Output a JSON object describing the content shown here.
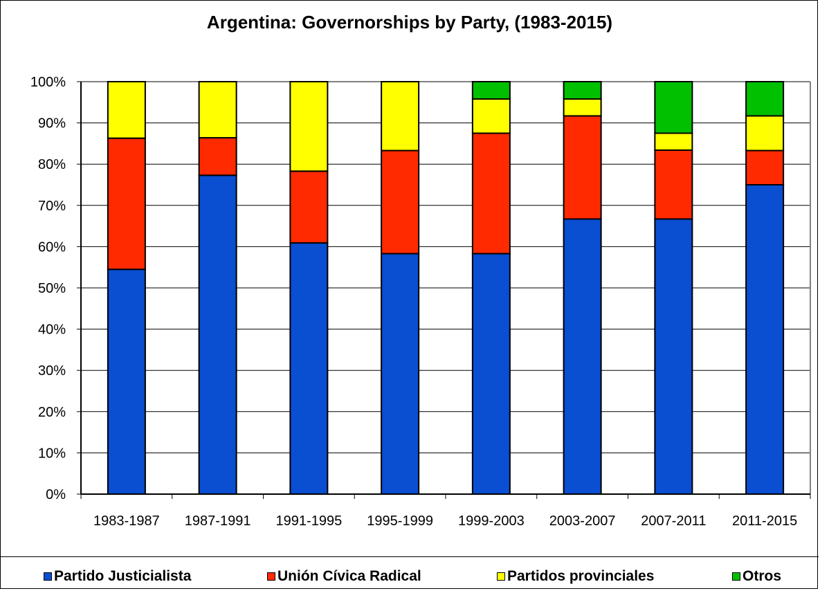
{
  "chart_data": {
    "type": "bar",
    "stacked": true,
    "title": "Argentina: Governorships by Party, (1983-2015)",
    "xlabel": "",
    "ylabel": "",
    "ylim": [
      0,
      100
    ],
    "yticks": [
      "0%",
      "10%",
      "20%",
      "30%",
      "40%",
      "50%",
      "60%",
      "70%",
      "80%",
      "90%",
      "100%"
    ],
    "grid": true,
    "legend_position": "bottom",
    "categories": [
      "1983-1987",
      "1987-1991",
      "1991-1995",
      "1995-1999",
      "1999-2003",
      "2003-2007",
      "2007-2011",
      "2011-2015"
    ],
    "series": [
      {
        "name": "Partido Justicialista",
        "color": "#0a4ed1",
        "values": [
          54.5,
          77.3,
          60.9,
          58.3,
          58.3,
          66.7,
          66.7,
          75.0
        ]
      },
      {
        "name": "Unión Cívica Radical",
        "color": "#ff2a00",
        "values": [
          31.8,
          9.1,
          17.4,
          25.0,
          29.2,
          25.0,
          16.7,
          8.3
        ]
      },
      {
        "name": "Partidos provinciales",
        "color": "#ffff00",
        "values": [
          13.7,
          13.6,
          21.7,
          16.7,
          8.3,
          4.1,
          4.1,
          8.4
        ]
      },
      {
        "name": "Otros",
        "color": "#00c000",
        "values": [
          0,
          0,
          0,
          0,
          4.2,
          4.2,
          12.5,
          8.3
        ]
      }
    ]
  }
}
